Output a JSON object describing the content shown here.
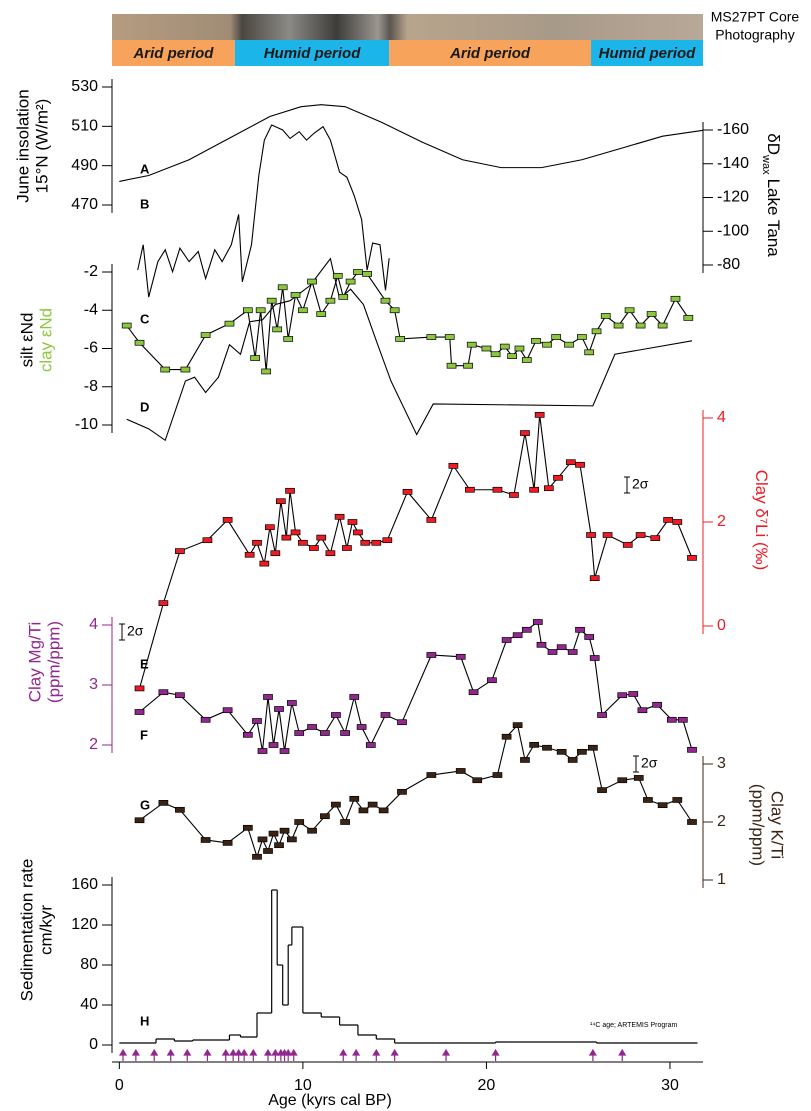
{
  "chart_data": {
    "type": "multi-panel",
    "photo_label": [
      "MS27PT Core",
      "Photography"
    ],
    "xlabel": "Age (kyrs cal BP)",
    "xlim": [
      -0.4,
      31.8
    ],
    "xticks": [
      0,
      10,
      20,
      30
    ],
    "periods": [
      {
        "label": "Arid period",
        "start": -0.4,
        "end": 6.3,
        "color": "#f7a35c"
      },
      {
        "label": "Humid period",
        "start": 6.3,
        "end": 14.7,
        "color": "#1cb5ea"
      },
      {
        "label": "Arid period",
        "start": 14.7,
        "end": 25.7,
        "color": "#f7a35c"
      },
      {
        "label": "Humid period",
        "start": 25.7,
        "end": 31.8,
        "color": "#1cb5ea"
      }
    ],
    "panels": [
      {
        "type": "line",
        "side": "left",
        "color": "#000000",
        "ylabel": [
          "June insolation",
          "15°N (W/m²)"
        ],
        "ylim": [
          470,
          530
        ],
        "yticks": [
          470,
          490,
          510,
          530
        ],
        "series": [
          {
            "tag": "A",
            "color": "#000000",
            "markers": false,
            "x": [
              0,
              1.6,
              3.8,
              6.0,
              8.2,
              9.9,
              11.0,
              12.3,
              14.3,
              16.5,
              18.7,
              20.8,
              23.0,
              25.2,
              27.4,
              29.6,
              31.8
            ],
            "values": [
              482,
              485,
              493,
              504,
              515,
              520,
              521,
              520,
              512,
              502,
              493,
              489,
              489,
              493,
              499,
              505,
              508
            ]
          }
        ]
      },
      {
        "type": "line",
        "side": "right",
        "color": "#000000",
        "ylabel": [
          "δD",
          "Lake Tana"
        ],
        "ylabel_subscript": "wax",
        "ylim": [
          -80,
          -160
        ],
        "yticks": [
          -80,
          -100,
          -120,
          -140,
          -160
        ],
        "series": [
          {
            "tag": "B",
            "color": "#000000",
            "markers": false,
            "x": [
              1.0,
              1.3,
              1.6,
              2.1,
              2.5,
              2.9,
              3.3,
              3.8,
              4.3,
              4.7,
              5.2,
              5.6,
              6.1,
              6.5,
              6.7,
              7.2,
              7.6,
              7.9,
              8.3,
              8.9,
              9.3,
              9.8,
              10.2,
              10.6,
              11.1,
              11.5,
              12.0,
              12.4,
              12.8,
              13.2,
              13.5,
              13.8,
              14.2,
              14.5,
              14.7
            ],
            "values": [
              -77,
              -92,
              -61,
              -82,
              -89,
              -76,
              -90,
              -82,
              -88,
              -72,
              -89,
              -82,
              -92,
              -110,
              -70,
              -92,
              -133,
              -154,
              -163,
              -160,
              -155,
              -159,
              -154,
              -158,
              -162,
              -154,
              -135,
              -132,
              -121,
              -107,
              -77,
              -93,
              -92,
              -65,
              -84
            ]
          }
        ]
      },
      {
        "type": "line",
        "side": "left",
        "color": "#000000",
        "label_from_series": true,
        "ylim": [
          -10,
          -2
        ],
        "yticks": [
          -10,
          -8,
          -6,
          -4,
          -2
        ],
        "series": [
          {
            "name": "silt εNd",
            "tag": "D",
            "color": "#000000",
            "markers": false,
            "x": [
              0.4,
              1.6,
              2.5,
              3.6,
              4.1,
              4.7,
              5.4,
              6.0,
              6.6,
              7.1,
              7.8,
              8.5,
              9.3,
              10.4,
              11.5,
              12.0,
              12.6,
              13.3,
              14.0,
              14.8,
              16.2,
              17.1,
              25.8,
              27.0,
              31.2
            ],
            "values": [
              -9.7,
              -10.2,
              -10.8,
              -7.7,
              -7.5,
              -8.3,
              -7.5,
              -5.8,
              -6.3,
              -4.6,
              -4.5,
              -3.7,
              -3.5,
              -2.7,
              -1.3,
              -3.4,
              -2.9,
              -3.7,
              -5.6,
              -7.7,
              -10.5,
              -8.9,
              -9.0,
              -6.3,
              -5.6
            ]
          },
          {
            "name": "clay εNd",
            "tag": "C",
            "color": "#8dc63f",
            "markers": true,
            "x": [
              0.4,
              1.1,
              2.5,
              3.6,
              4.7,
              6.0,
              7.0,
              7.4,
              7.7,
              8.0,
              8.3,
              8.6,
              8.9,
              9.2,
              9.6,
              10.0,
              10.5,
              11.0,
              11.5,
              11.9,
              12.2,
              12.6,
              13.0,
              13.5,
              14.5,
              15.0,
              15.3,
              17.0,
              18.0,
              18.1,
              19.0,
              19.2,
              20.0,
              20.5,
              21.0,
              21.4,
              21.8,
              22.2,
              22.7,
              23.3,
              23.8,
              24.5,
              25.2,
              25.6,
              26.0,
              26.5,
              27.2,
              27.8,
              28.4,
              29.0,
              29.6,
              30.3,
              31.0
            ],
            "values": [
              -4.8,
              -5.7,
              -7.1,
              -7.1,
              -5.3,
              -4.7,
              -4.0,
              -6.5,
              -4.0,
              -7.2,
              -3.5,
              -5.0,
              -2.8,
              -5.5,
              -3.2,
              -4.0,
              -2.5,
              -4.2,
              -3.5,
              -2.2,
              -3.3,
              -2.5,
              -2.0,
              -2.1,
              -3.5,
              -4.0,
              -5.5,
              -5.4,
              -5.4,
              -6.9,
              -6.9,
              -5.8,
              -6.0,
              -6.3,
              -5.9,
              -6.4,
              -6.0,
              -6.6,
              -5.6,
              -5.8,
              -5.4,
              -5.8,
              -5.4,
              -6.2,
              -5.1,
              -4.3,
              -4.8,
              -4.0,
              -4.8,
              -4.2,
              -4.8,
              -3.4,
              -4.4
            ]
          }
        ]
      },
      {
        "type": "line",
        "side": "right",
        "color": "#ed1c24",
        "ylabel": [
          "Clay δ⁷Li (‰)"
        ],
        "annotation": "2σ",
        "ylim": [
          0,
          4
        ],
        "yticks": [
          0,
          2,
          4
        ],
        "series": [
          {
            "tag": "E",
            "color": "#ed1c24",
            "markers": true,
            "x": [
              1.1,
              2.4,
              3.3,
              4.8,
              5.9,
              7.1,
              7.5,
              7.9,
              8.2,
              8.5,
              8.8,
              9.1,
              9.3,
              9.6,
              10.0,
              10.6,
              11.0,
              11.5,
              12.0,
              12.4,
              12.7,
              13.0,
              13.4,
              14.0,
              14.6,
              15.7,
              17.0,
              18.2,
              19.1,
              20.6,
              21.5,
              22.1,
              22.6,
              22.9,
              23.4,
              23.9,
              24.6,
              25.1,
              25.7,
              25.9,
              26.6,
              27.7,
              28.4,
              29.2,
              29.9,
              30.4,
              31.2
            ],
            "values": [
              -1.2,
              0.44,
              1.44,
              1.65,
              2.04,
              1.37,
              1.6,
              1.2,
              1.9,
              1.4,
              2.4,
              1.7,
              2.6,
              1.8,
              1.6,
              1.5,
              1.7,
              1.4,
              2.1,
              1.5,
              2.0,
              1.8,
              1.6,
              1.6,
              1.65,
              2.58,
              2.04,
              3.08,
              2.62,
              2.62,
              2.52,
              3.71,
              2.62,
              4.06,
              2.65,
              2.85,
              3.15,
              3.1,
              1.75,
              0.92,
              1.75,
              1.56,
              1.75,
              1.69,
              2.04,
              2.0,
              1.31
            ]
          }
        ]
      },
      {
        "type": "line",
        "side": "left",
        "color": "#92278f",
        "ylabel": [
          "Clay Mg/Ti",
          "(ppm/ppm)"
        ],
        "annotation": "2σ",
        "ylim": [
          2,
          4
        ],
        "yticks": [
          2,
          3,
          4
        ],
        "series": [
          {
            "tag": "F",
            "color": "#92278f",
            "markers": true,
            "x": [
              1.1,
              2.4,
              3.3,
              4.7,
              5.9,
              7.0,
              7.5,
              7.8,
              8.1,
              8.4,
              8.7,
              9.0,
              9.4,
              9.8,
              10.5,
              11.2,
              11.8,
              12.3,
              12.8,
              13.2,
              13.7,
              14.5,
              15.4,
              17.0,
              18.6,
              19.3,
              20.3,
              21.1,
              21.7,
              22.2,
              22.8,
              23.0,
              23.6,
              24.1,
              24.7,
              25.1,
              25.6,
              25.9,
              26.3,
              27.4,
              28.0,
              28.5,
              29.3,
              30.1,
              30.7,
              31.2
            ],
            "values": [
              2.55,
              2.88,
              2.83,
              2.42,
              2.58,
              2.17,
              2.4,
              1.9,
              2.8,
              2.0,
              2.6,
              1.9,
              2.7,
              2.2,
              2.3,
              2.2,
              2.5,
              2.2,
              2.8,
              2.3,
              2.0,
              2.5,
              2.38,
              3.5,
              3.47,
              2.88,
              3.08,
              3.75,
              3.83,
              3.92,
              4.05,
              3.67,
              3.55,
              3.63,
              3.55,
              3.92,
              3.8,
              3.45,
              2.5,
              2.83,
              2.85,
              2.58,
              2.67,
              2.42,
              2.42,
              1.92
            ]
          }
        ]
      },
      {
        "type": "line",
        "side": "right",
        "color": "#3c2415",
        "ylabel": [
          "Clay K/Ti",
          "(ppm/ppm)"
        ],
        "annotation": "2σ",
        "ylim": [
          1,
          3
        ],
        "yticks": [
          1,
          2,
          3
        ],
        "series": [
          {
            "tag": "G",
            "color": "#3c2415",
            "markers": true,
            "x": [
              1.1,
              2.4,
              3.3,
              4.7,
              5.9,
              7.0,
              7.5,
              7.8,
              8.1,
              8.4,
              8.7,
              9.0,
              9.4,
              9.8,
              10.5,
              11.2,
              11.8,
              12.3,
              12.8,
              13.3,
              13.8,
              14.4,
              15.4,
              17.0,
              18.6,
              19.5,
              20.6,
              21.1,
              21.7,
              22.1,
              22.6,
              23.3,
              24.1,
              24.7,
              25.2,
              25.8,
              26.3,
              27.4,
              28.3,
              28.8,
              29.6,
              30.4,
              31.2
            ],
            "values": [
              2.03,
              2.33,
              2.21,
              1.69,
              1.64,
              1.9,
              1.4,
              1.7,
              1.5,
              1.8,
              1.6,
              1.85,
              1.7,
              2.0,
              1.85,
              2.1,
              2.3,
              2.0,
              2.4,
              2.2,
              2.3,
              2.2,
              2.52,
              2.81,
              2.88,
              2.72,
              2.81,
              3.47,
              3.67,
              3.07,
              3.33,
              3.28,
              3.21,
              3.07,
              3.21,
              3.28,
              2.55,
              2.72,
              2.76,
              2.38,
              2.29,
              2.38,
              2.0
            ]
          }
        ]
      },
      {
        "type": "step",
        "side": "left",
        "color": "#000000",
        "ylabel": [
          "Sedimentation rate",
          "cm/kyr"
        ],
        "ylim": [
          0,
          160
        ],
        "yticks": [
          0,
          40,
          80,
          120,
          160
        ],
        "series": [
          {
            "tag": "H",
            "color": "#000000",
            "markers": false,
            "bins": [
              0,
              2,
              3,
              4,
              6,
              6.6,
              7.5,
              8.3,
              8.6,
              8.9,
              9.2,
              9.4,
              10,
              11,
              12,
              13,
              14,
              15,
              20.5,
              26,
              31.5
            ],
            "values": [
              2,
              6,
              4,
              5,
              10,
              8,
              32,
              155,
              80,
              40,
              100,
              118,
              32,
              28,
              20,
              10,
              6,
              2,
              3,
              2
            ]
          }
        ]
      }
    ],
    "radiocarbon": {
      "label": "¹⁴C age; ARTEMIS Program",
      "color": "#92278f",
      "ages": [
        0.2,
        0.9,
        1.9,
        2.8,
        3.7,
        4.8,
        5.8,
        6.2,
        6.5,
        6.8,
        7.3,
        8.1,
        8.5,
        8.8,
        9.0,
        9.2,
        9.5,
        12.2,
        12.9,
        14.0,
        15.0,
        17.8,
        20.5,
        25.8,
        27.4
      ]
    }
  }
}
